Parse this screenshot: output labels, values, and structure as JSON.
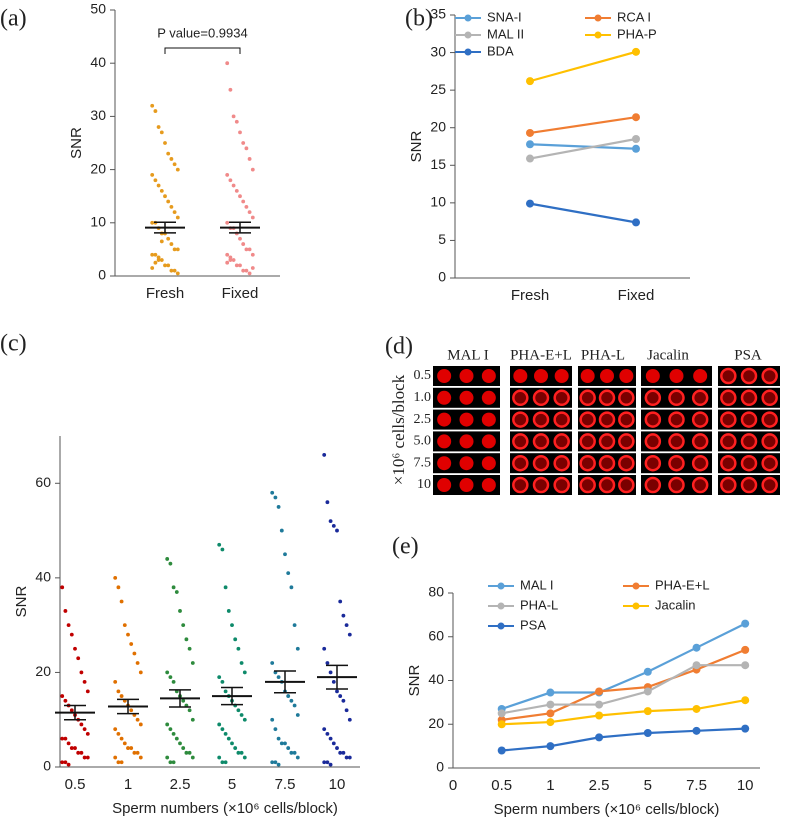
{
  "chart_data": [
    {
      "type": "dot",
      "label": "(a)",
      "ylabel": "SNR",
      "annotation": "P value=0.9934",
      "categories": [
        "Fresh",
        "Fixed"
      ],
      "colors": [
        "#e69b1e",
        "#f08a8a"
      ],
      "points": [
        [
          32,
          31,
          28,
          27,
          25,
          23,
          22,
          21,
          20,
          19,
          18,
          17,
          16,
          15,
          14,
          13,
          12,
          11,
          10,
          10,
          9,
          8,
          8,
          7,
          6,
          5,
          5,
          4,
          4,
          3,
          3,
          2,
          2,
          1,
          1,
          0.5,
          1.5,
          2.5,
          3.5,
          6.5
        ],
        [
          40,
          35,
          30,
          29,
          27,
          25,
          24,
          22,
          20,
          19,
          18,
          17,
          16,
          15,
          14,
          13,
          12,
          11,
          10,
          9,
          9,
          8,
          7,
          6,
          5,
          5,
          4,
          4,
          3,
          3,
          2,
          2,
          1,
          1,
          0.5,
          1.5,
          2.5,
          3.5
        ]
      ],
      "means": [
        9.1,
        9.1
      ],
      "sems": [
        1.0,
        1.0
      ],
      "ylim": [
        0,
        50
      ],
      "yticks": [
        0,
        10,
        20,
        30,
        40,
        50
      ]
    },
    {
      "type": "line",
      "label": "(b)",
      "ylabel": "SNR",
      "categories": [
        "Fresh",
        "Fixed"
      ],
      "series": [
        {
          "name": "SNA-I",
          "color": "#5aa0d8",
          "values": [
            17.8,
            17.2
          ]
        },
        {
          "name": "RCA I",
          "color": "#f07d32",
          "values": [
            19.3,
            21.4
          ]
        },
        {
          "name": "MAL II",
          "color": "#b4b4b4",
          "values": [
            15.9,
            18.5
          ]
        },
        {
          "name": "PHA-P",
          "color": "#ffc000",
          "values": [
            26.2,
            30.1
          ]
        },
        {
          "name": "BDA",
          "color": "#2f6fc4",
          "values": [
            9.9,
            7.4
          ]
        }
      ],
      "ylim": [
        0,
        35
      ],
      "yticks": [
        0,
        5,
        10,
        15,
        20,
        25,
        30,
        35
      ]
    },
    {
      "type": "dot",
      "label": "(c)",
      "ylabel": "SNR",
      "xlabel": "Sperm numbers (×10⁶ cells/block)",
      "categories": [
        "0.5",
        "1",
        "2.5",
        "5",
        "7.5",
        "10"
      ],
      "colors": [
        "#c00000",
        "#e07000",
        "#2e8b3d",
        "#0e8a6a",
        "#1f7a9a",
        "#1a2a9a"
      ],
      "points": [
        [
          38,
          33,
          30,
          28,
          25,
          23,
          20,
          18,
          16,
          15,
          14,
          13,
          12,
          11,
          10,
          9,
          8,
          7,
          6,
          6,
          5,
          4,
          4,
          3,
          3,
          2,
          2,
          1,
          1,
          0.5
        ],
        [
          40,
          38,
          35,
          30,
          28,
          26,
          24,
          22,
          20,
          18,
          16,
          15,
          14,
          13,
          12,
          11,
          10,
          9,
          8,
          7,
          6,
          5,
          4,
          4,
          3,
          3,
          2,
          2,
          1,
          1
        ],
        [
          44,
          43,
          38,
          37,
          33,
          30,
          27,
          25,
          22,
          20,
          19,
          18,
          16,
          15,
          14,
          13,
          12,
          10,
          9,
          8,
          7,
          6,
          5,
          4,
          3,
          3,
          2,
          2,
          1,
          1
        ],
        [
          47,
          46,
          38,
          33,
          30,
          27,
          25,
          22,
          20,
          19,
          18,
          16,
          15,
          14,
          13,
          12,
          11,
          10,
          9,
          8,
          7,
          6,
          5,
          4,
          3,
          3,
          2,
          2,
          1,
          1
        ],
        [
          58,
          57,
          55,
          50,
          45,
          41,
          38,
          30,
          25,
          22,
          20,
          19,
          18,
          16,
          15,
          14,
          13,
          11,
          10,
          8,
          6,
          5,
          5,
          4,
          3,
          3,
          2,
          1,
          1,
          0.5
        ],
        [
          66,
          56,
          52,
          51,
          50,
          35,
          32,
          30,
          28,
          25,
          22,
          20,
          18,
          16,
          15,
          14,
          12,
          10,
          8,
          7,
          6,
          5,
          4,
          3,
          3,
          2,
          2,
          1,
          1,
          0.5
        ]
      ],
      "means": [
        11.5,
        12.8,
        14.5,
        15,
        18,
        19
      ],
      "sems": [
        1.5,
        1.5,
        1.8,
        1.8,
        2.3,
        2.5
      ],
      "ylim": [
        0,
        70
      ],
      "yticks": [
        0,
        20,
        40,
        60
      ]
    },
    {
      "type": "line",
      "label": "(e)",
      "ylabel": "SNR",
      "xlabel": "Sperm numbers (×10⁶ cells/block)",
      "categories": [
        "0",
        "0.5",
        "1",
        "2.5",
        "5",
        "7.5",
        "10"
      ],
      "series": [
        {
          "name": "MAL I",
          "color": "#5aa0d8",
          "values": [
            null,
            27,
            34.5,
            34.5,
            44,
            55,
            66
          ]
        },
        {
          "name": "PHA-E+L",
          "color": "#f07d32",
          "values": [
            null,
            22,
            25,
            35,
            37,
            45,
            54
          ]
        },
        {
          "name": "PHA-L",
          "color": "#b4b4b4",
          "values": [
            null,
            25,
            29,
            29,
            35,
            47,
            47
          ]
        },
        {
          "name": "Jacalin",
          "color": "#ffc000",
          "values": [
            null,
            20,
            21,
            24,
            26,
            27,
            31
          ]
        },
        {
          "name": "PSA",
          "color": "#2f6fc4",
          "values": [
            null,
            8,
            10,
            14,
            16,
            17,
            18
          ]
        }
      ],
      "ylim": [
        0,
        80
      ],
      "yticks": [
        0,
        20,
        40,
        60,
        80
      ]
    }
  ],
  "image_panel": {
    "label": "(d)",
    "columns": [
      "MAL I",
      "PHA-E+L",
      "PHA-L",
      "Jacalin",
      "PSA"
    ],
    "rows": [
      "0.5",
      "1.0",
      "2.5",
      "5.0",
      "7.5",
      "10"
    ],
    "axis_label": "×10⁶ cells/block"
  }
}
